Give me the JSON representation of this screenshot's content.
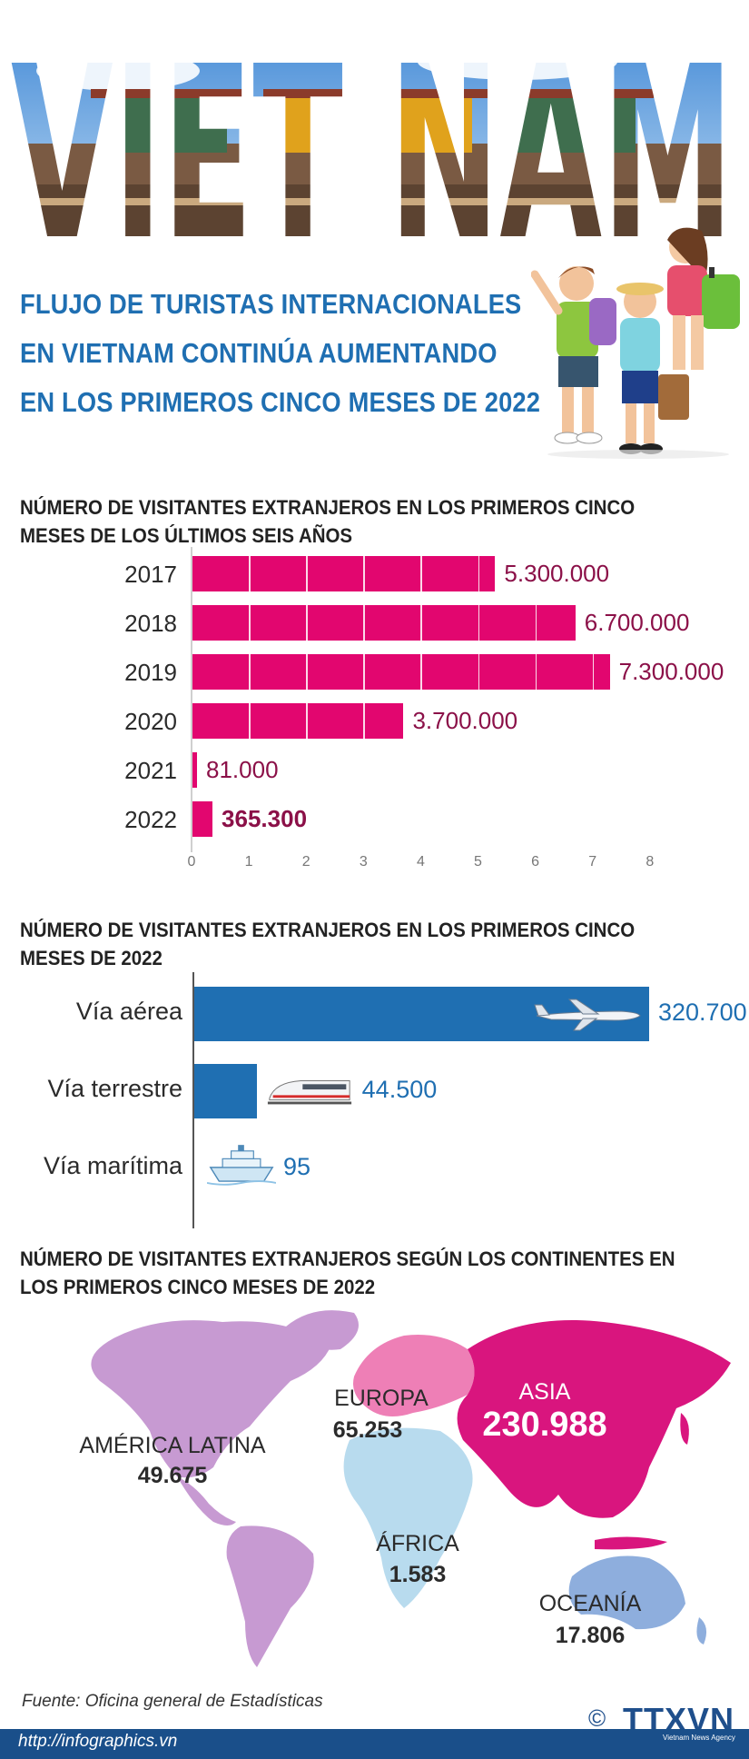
{
  "header": {
    "banner_word": "VIET NAM",
    "title_lines": [
      "FLUJO DE TURISTAS INTERNACIONALES",
      "EN VIETNAM CONTINÚA AUMENTANDO",
      "EN LOS PRIMEROS CINCO MESES DE 2022"
    ]
  },
  "chart1_title": "NÚMERO DE VISITANTES EXTRANJEROS EN LOS PRIMEROS CINCO MESES DE LOS ÚLTIMOS SEIS AÑOS",
  "chart2_title": "NÚMERO DE VISITANTES EXTRANJEROS EN LOS PRIMEROS CINCO MESES DE 2022",
  "chart3_title": "NÚMERO DE VISITANTES EXTRANJEROS SEGÚN LOS CONTINENTES EN LOS PRIMEROS CINCO MESES DE 2022",
  "chart_data": [
    {
      "type": "bar",
      "orientation": "horizontal",
      "categories": [
        "2017",
        "2018",
        "2019",
        "2020",
        "2021",
        "2022"
      ],
      "values": [
        5300000,
        6700000,
        7300000,
        3700000,
        81000,
        365300
      ],
      "value_labels": [
        "5.300.000",
        "6.700.000",
        "7.300.000",
        "3.700.000",
        "81.000",
        "365.300"
      ],
      "xticks": [
        "0",
        "1",
        "2",
        "3",
        "4",
        "5",
        "6",
        "7",
        "8"
      ],
      "xlim": [
        0,
        8000000
      ],
      "grid": true,
      "color": "#e2066f",
      "label_color": "#8b1048"
    },
    {
      "type": "bar",
      "orientation": "horizontal",
      "categories": [
        "Vía aérea",
        "Vía terrestre",
        "Vía marítima"
      ],
      "values": [
        320700,
        44500,
        95
      ],
      "value_labels": [
        "320.700",
        "44.500",
        "95"
      ],
      "icons": [
        "airplane-icon",
        "train-icon",
        "ship-icon"
      ],
      "color": "#1f6fb2"
    },
    {
      "type": "map",
      "regions": [
        {
          "name": "AMÉRICA LATINA",
          "value": 49675,
          "value_label": "49.675",
          "color": "#c79ad2"
        },
        {
          "name": "EUROPA",
          "value": 65253,
          "value_label": "65.253",
          "color": "#ee7fb6"
        },
        {
          "name": "ASIA",
          "value": 230988,
          "value_label": "230.988",
          "color": "#d9157e"
        },
        {
          "name": "ÁFRICA",
          "value": 1583,
          "value_label": "1.583",
          "color": "#b8dbee"
        },
        {
          "name": "OCEANÍA",
          "value": 17806,
          "value_label": "17.806",
          "color": "#8eaedd"
        }
      ]
    }
  ],
  "footer": {
    "source": "Fuente: Oficina general de Estadísticas",
    "url": "http://infographics.vn",
    "logo": "TTXVN",
    "logo_sub": "Vietnam News Agency",
    "copyright": "©"
  }
}
